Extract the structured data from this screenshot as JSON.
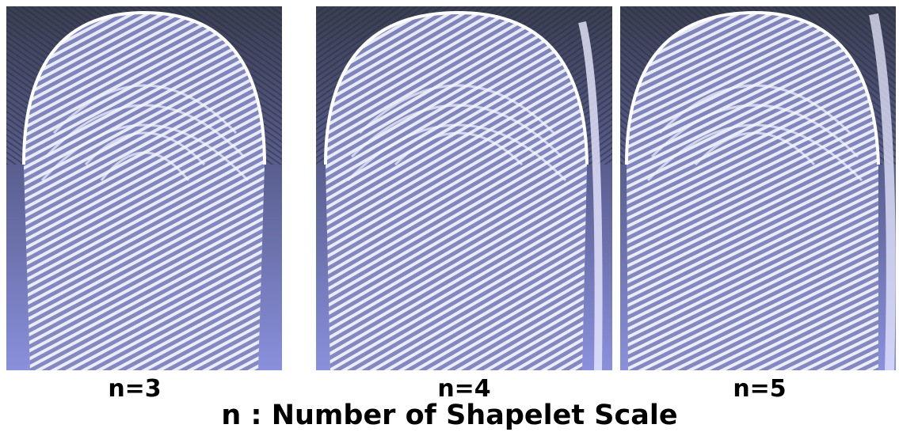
{
  "panels": [
    {
      "label": "n=3"
    },
    {
      "label": "n=4"
    },
    {
      "label": "n=5"
    }
  ],
  "caption": "n : Number of Shapelet Scale",
  "colors": {
    "background_top": "#3a3e52",
    "background_bottom": "#8a90dc",
    "ridge": "#f4f6ff",
    "valley": "#6a70a8"
  }
}
